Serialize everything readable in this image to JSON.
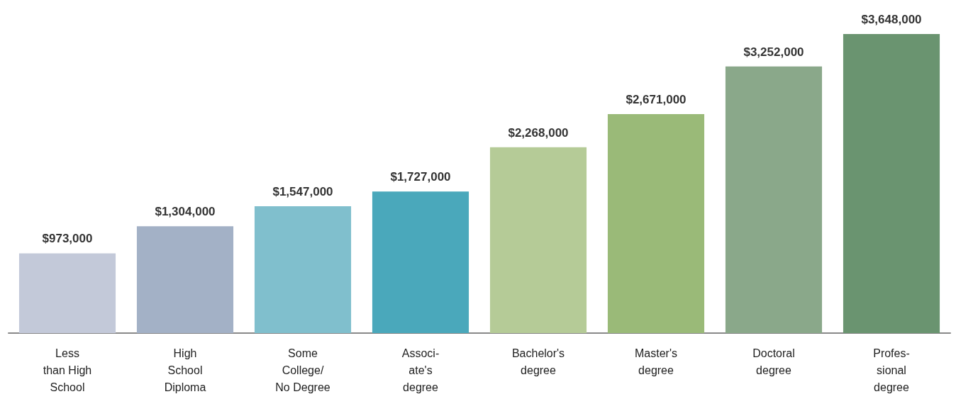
{
  "chart_data": {
    "type": "bar",
    "categories": [
      "Less\nthan High\nSchool",
      "High\nSchool\nDiploma",
      "Some\nCollege/\nNo Degree",
      "Associ-\nate's\ndegree",
      "Bachelor's\ndegree",
      "Master's\ndegree",
      "Doctoral\ndegree",
      "Profes-\nsional\ndegree"
    ],
    "values": [
      973000,
      1304000,
      1547000,
      1727000,
      2268000,
      2671000,
      3252000,
      3648000
    ],
    "colors": [
      "#c3c9d9",
      "#a3b1c6",
      "#80bfcd",
      "#4aa8bb",
      "#b5cb97",
      "#9aba78",
      "#8aa88a",
      "#6a9470"
    ],
    "value_labels": [
      "$973,000",
      "$1,304,000",
      "$1,547,000",
      "$1,727,000",
      "$2,268,000",
      "$2,671,000",
      "$3,252,000",
      "$3,648,000"
    ]
  }
}
